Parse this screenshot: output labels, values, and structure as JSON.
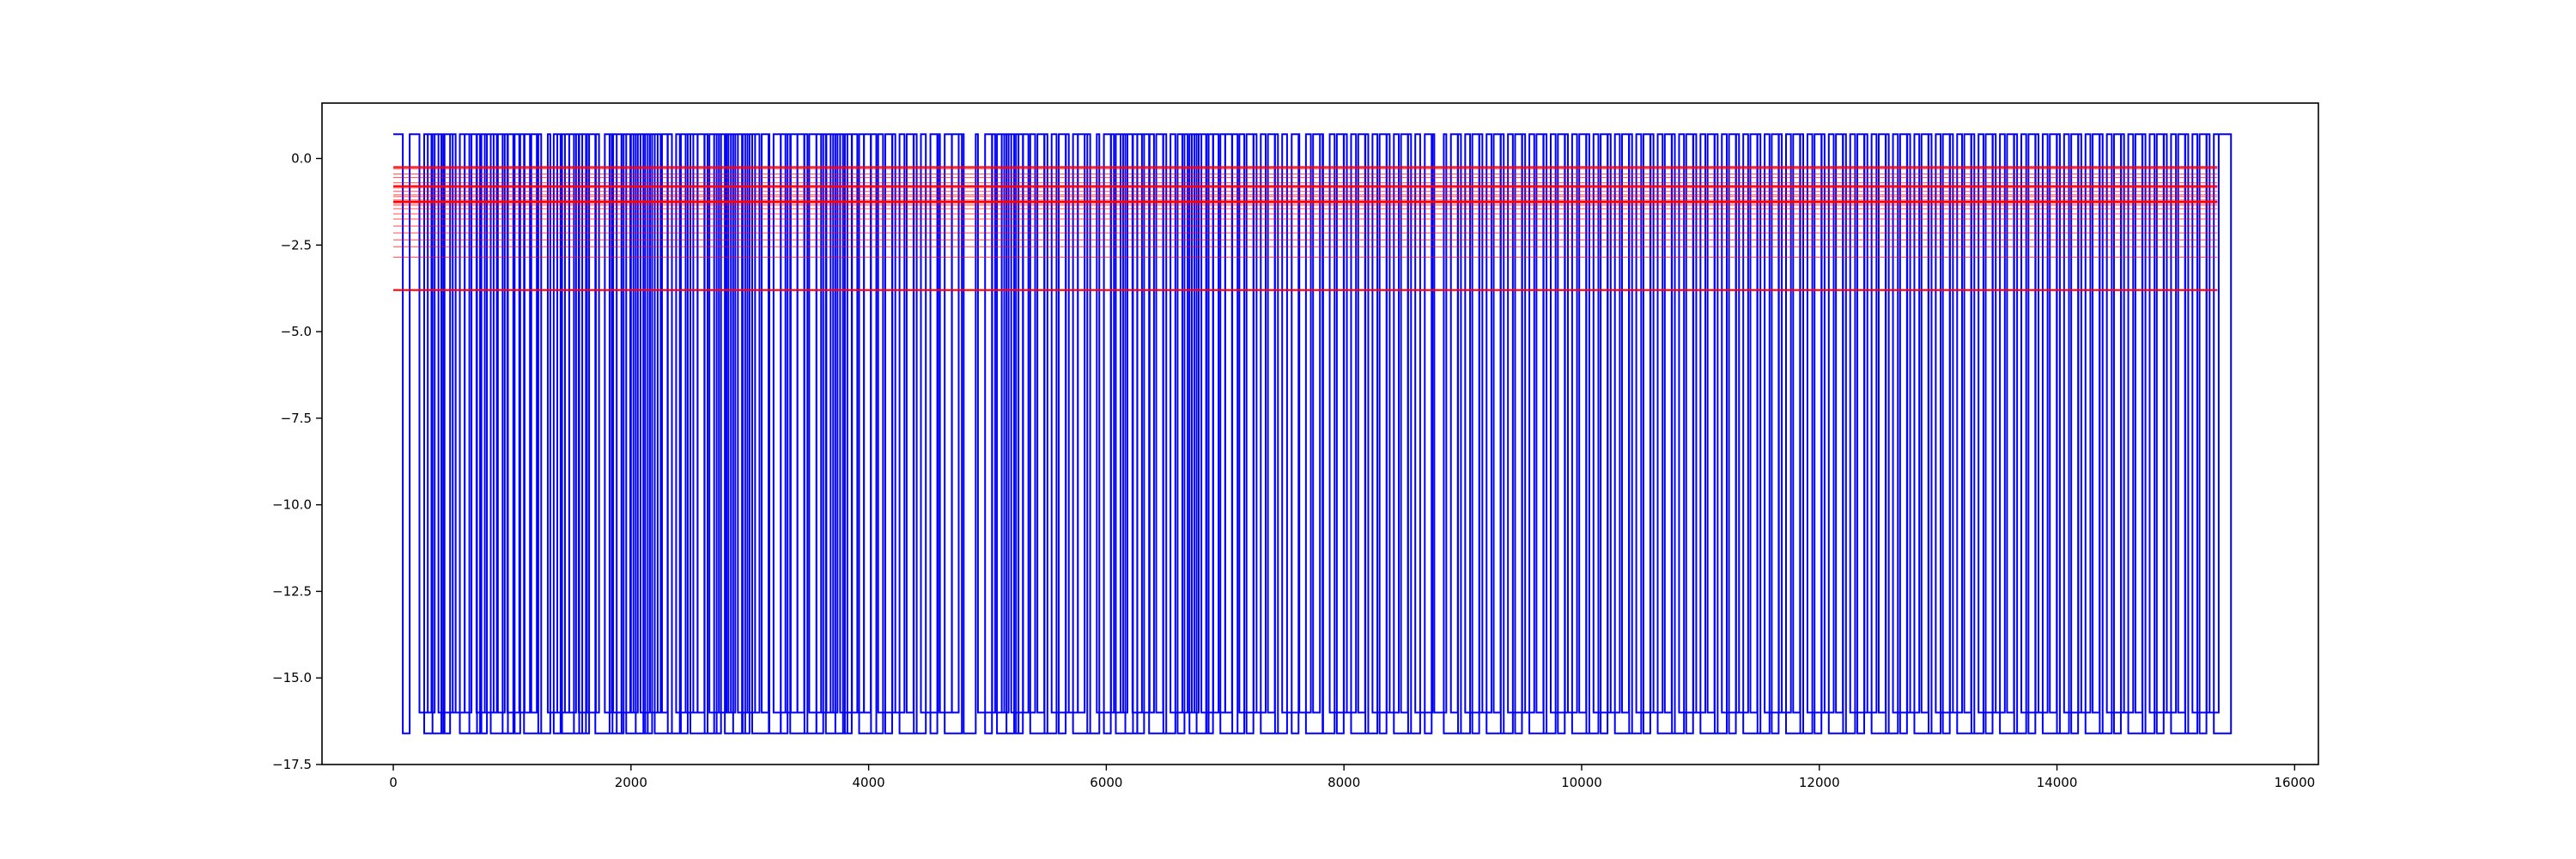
{
  "chart_data": {
    "type": "line",
    "title": "",
    "xlabel": "",
    "ylabel": "",
    "xlim": [
      -600,
      16200
    ],
    "ylim": [
      -17.5,
      1.6
    ],
    "grid": false,
    "legend": "none",
    "xticks": [
      0,
      2000,
      4000,
      6000,
      8000,
      10000,
      12000,
      14000,
      16000
    ],
    "xtick_labels": [
      "0",
      "2000",
      "4000",
      "6000",
      "8000",
      "10000",
      "12000",
      "14000",
      "16000"
    ],
    "yticks": [
      0.0,
      -2.5,
      -5.0,
      -7.5,
      -10.0,
      -12.5,
      -15.0,
      -17.5
    ],
    "ytick_labels": [
      "0.0",
      "−2.5",
      "−5.0",
      "−7.5",
      "−10.0",
      "−12.5",
      "−15.0",
      "−17.5"
    ],
    "series": [
      {
        "color": "#0000ff",
        "style": "step",
        "x_range": [
          0,
          15350
        ],
        "high_value": 0.7,
        "low_values": [
          -16.6,
          -16.0
        ],
        "drop_x": [
          80,
          220,
          260,
          290,
          330,
          380,
          420,
          500,
          560,
          600,
          640,
          700,
          730,
          770,
          820,
          880,
          920,
          960,
          1010,
          1060,
          1100,
          1150,
          1220,
          1300,
          1350,
          1380,
          1420,
          1480,
          1520,
          1560,
          1590,
          1630,
          1700,
          1780,
          1820,
          1850,
          1880,
          1920,
          1960,
          2000,
          2040,
          2080,
          2120,
          2160,
          2200,
          2250,
          2310,
          2380,
          2420,
          2460,
          2500,
          2560,
          2620,
          2660,
          2700,
          2740,
          2790,
          2820,
          2860,
          2900,
          2940,
          2980,
          3020,
          3100,
          3160,
          3200,
          3260,
          3300,
          3340,
          3400,
          3460,
          3500,
          3560,
          3600,
          3640,
          3680,
          3720,
          3760,
          3800,
          3860,
          3920,
          3960,
          4020,
          4080,
          4140,
          4200,
          4260,
          4320,
          4380,
          4440,
          4520,
          4600,
          4640,
          4700,
          4800,
          4920,
          4980,
          5040,
          5080,
          5120,
          5160,
          5200,
          5240,
          5300,
          5360,
          5420,
          5480,
          5540,
          5600,
          5660,
          5720,
          5760,
          5840,
          5920,
          5980,
          6040,
          6080,
          6120,
          6160,
          6220,
          6260,
          6300,
          6360,
          6420,
          6480,
          6540,
          6600,
          6640,
          6700,
          6720,
          6760,
          6800,
          6840,
          6900,
          6960,
          7000,
          7060,
          7120,
          7180,
          7240,
          7300,
          7360,
          7420,
          7480,
          7560,
          7620,
          7680,
          7740,
          7820,
          7880,
          7940,
          8000,
          8060,
          8120,
          8180,
          8240,
          8300,
          8360,
          8420,
          8480,
          8540,
          8600,
          8680,
          8760,
          8840,
          8900,
          8960,
          9020,
          9080,
          9140,
          9200,
          9260,
          9320,
          9380,
          9440,
          9500,
          9560,
          9620,
          9680,
          9740,
          9800,
          9860,
          9920,
          9980,
          10040,
          10100,
          10160,
          10220,
          10280,
          10340,
          10400,
          10460,
          10520,
          10580,
          10640,
          10700,
          10760,
          10820,
          10880,
          10940,
          11000,
          11060,
          11120,
          11180,
          11240,
          11300,
          11360,
          11420,
          11480,
          11540,
          11600,
          11660,
          11720,
          11780,
          11840,
          11900,
          11960,
          12020,
          12080,
          12140,
          12200,
          12260,
          12320,
          12380,
          12440,
          12500,
          12560,
          12620,
          12680,
          12740,
          12800,
          12860,
          12920,
          12980,
          13040,
          13100,
          13160,
          13220,
          13280,
          13340,
          13400,
          13460,
          13520,
          13580,
          13640,
          13700,
          13760,
          13820,
          13880,
          13940,
          14000,
          14060,
          14120,
          14180,
          14240,
          14300,
          14360,
          14420,
          14480,
          14540,
          14600,
          14660,
          14720,
          14780,
          14840,
          14900,
          14960,
          15020,
          15080,
          15140,
          15200,
          15260,
          15320
        ]
      },
      {
        "color": "#ff0000",
        "style": "horizontal-lines",
        "x_range": [
          0,
          15350
        ],
        "y_values": [
          -0.25,
          -0.3,
          -0.45,
          -0.55,
          -0.7,
          -0.8,
          -0.85,
          -0.95,
          -1.05,
          -1.1,
          -1.2,
          -1.25,
          -1.3,
          -1.35,
          -1.45,
          -1.6,
          -1.75,
          -1.95,
          -2.15,
          -2.35,
          -2.55,
          -2.85,
          -3.8
        ]
      }
    ]
  }
}
